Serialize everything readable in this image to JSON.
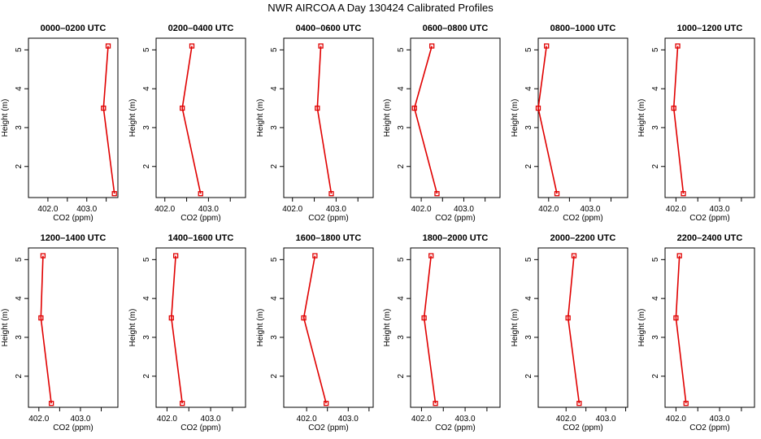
{
  "title": "NWR AIRCOA A  Day 130424  Calibrated Profiles",
  "chart_data": [
    {
      "type": "line",
      "title": "0000–0200 UTC",
      "xlabel": "CO2 (ppm)",
      "ylabel": "Height (m)",
      "xlim": [
        401.5,
        403.8
      ],
      "ylim": [
        1.2,
        5.3
      ],
      "xticks": [
        402.0,
        402.5,
        403.0,
        403.5
      ],
      "xtick_labels": [
        "402.0",
        "",
        "403.0",
        ""
      ],
      "yticks": [
        2,
        3,
        4,
        5
      ],
      "ytick_labels": [
        "2",
        "3",
        "4",
        "5"
      ],
      "series": [
        {
          "x": [
            403.55,
            403.43,
            403.71
          ],
          "y": [
            5.1,
            3.5,
            1.3
          ]
        }
      ],
      "color": "#e00000"
    },
    {
      "type": "line",
      "title": "0200–0400 UTC",
      "xlabel": "CO2 (ppm)",
      "ylabel": "Height (m)",
      "xlim": [
        401.8,
        403.85
      ],
      "ylim": [
        1.2,
        5.3
      ],
      "xticks": [
        402.0,
        402.5,
        403.0,
        403.5
      ],
      "xtick_labels": [
        "402.0",
        "",
        "403.0",
        ""
      ],
      "yticks": [
        2,
        3,
        4,
        5
      ],
      "ytick_labels": [
        "2",
        "3",
        "4",
        "5"
      ],
      "series": [
        {
          "x": [
            402.62,
            402.4,
            402.82
          ],
          "y": [
            5.1,
            3.5,
            1.3
          ]
        }
      ],
      "color": "#e00000"
    },
    {
      "type": "line",
      "title": "0400–0600 UTC",
      "xlabel": "CO2 (ppm)",
      "ylabel": "Height (m)",
      "xlim": [
        401.8,
        403.85
      ],
      "ylim": [
        1.2,
        5.3
      ],
      "xticks": [
        402.0,
        402.5,
        403.0,
        403.5
      ],
      "xtick_labels": [
        "402.0",
        "",
        "403.0",
        ""
      ],
      "yticks": [
        2,
        3,
        4,
        5
      ],
      "ytick_labels": [
        "2",
        "3",
        "4",
        "5"
      ],
      "series": [
        {
          "x": [
            402.65,
            402.57,
            402.89
          ],
          "y": [
            5.1,
            3.5,
            1.3
          ]
        }
      ],
      "color": "#e00000"
    },
    {
      "type": "line",
      "title": "0600–0800 UTC",
      "xlabel": "CO2 (ppm)",
      "ylabel": "Height (m)",
      "xlim": [
        401.75,
        403.85
      ],
      "ylim": [
        1.2,
        5.3
      ],
      "xticks": [
        402.0,
        402.5,
        403.0,
        403.5
      ],
      "xtick_labels": [
        "402.0",
        "",
        "403.0",
        ""
      ],
      "yticks": [
        2,
        3,
        4,
        5
      ],
      "ytick_labels": [
        "2",
        "3",
        "4",
        "5"
      ],
      "series": [
        {
          "x": [
            402.25,
            401.84,
            402.37
          ],
          "y": [
            5.1,
            3.5,
            1.3
          ]
        }
      ],
      "color": "#e00000"
    },
    {
      "type": "line",
      "title": "0800–1000 UTC",
      "xlabel": "CO2 (ppm)",
      "ylabel": "Height (m)",
      "xlim": [
        401.75,
        403.9
      ],
      "ylim": [
        1.2,
        5.3
      ],
      "xticks": [
        402.0,
        402.5,
        403.0,
        403.5
      ],
      "xtick_labels": [
        "402.0",
        "",
        "403.0",
        ""
      ],
      "yticks": [
        2,
        3,
        4,
        5
      ],
      "ytick_labels": [
        "2",
        "3",
        "4",
        "5"
      ],
      "series": [
        {
          "x": [
            401.95,
            401.75,
            402.2
          ],
          "y": [
            5.1,
            3.5,
            1.3
          ]
        }
      ],
      "color": "#e00000"
    },
    {
      "type": "line",
      "title": "1000–1200 UTC",
      "xlabel": "CO2 (ppm)",
      "ylabel": "Height (m)",
      "xlim": [
        401.75,
        403.8
      ],
      "ylim": [
        1.2,
        5.3
      ],
      "xticks": [
        402.0,
        402.5,
        403.0,
        403.5
      ],
      "xtick_labels": [
        "402.0",
        "",
        "403.0",
        ""
      ],
      "yticks": [
        2,
        3,
        4,
        5
      ],
      "ytick_labels": [
        "2",
        "3",
        "4",
        "5"
      ],
      "series": [
        {
          "x": [
            402.04,
            401.95,
            402.17
          ],
          "y": [
            5.1,
            3.5,
            1.3
          ]
        }
      ],
      "color": "#e00000"
    },
    {
      "type": "line",
      "title": "1200–1400 UTC",
      "xlabel": "CO2 (ppm)",
      "ylabel": "Height (m)",
      "xlim": [
        401.75,
        403.9
      ],
      "ylim": [
        1.2,
        5.3
      ],
      "xticks": [
        402.0,
        402.5,
        403.0,
        403.5
      ],
      "xtick_labels": [
        "402.0",
        "",
        "403.0",
        ""
      ],
      "yticks": [
        2,
        3,
        4,
        5
      ],
      "ytick_labels": [
        "2",
        "3",
        "4",
        "5"
      ],
      "series": [
        {
          "x": [
            402.1,
            402.05,
            402.3
          ],
          "y": [
            5.1,
            3.5,
            1.3
          ]
        }
      ],
      "color": "#e00000"
    },
    {
      "type": "line",
      "title": "1400–1600 UTC",
      "xlabel": "CO2 (ppm)",
      "ylabel": "Height (m)",
      "xlim": [
        401.75,
        403.8
      ],
      "ylim": [
        1.2,
        5.3
      ],
      "xticks": [
        402.0,
        402.5,
        403.0,
        403.5
      ],
      "xtick_labels": [
        "402.0",
        "",
        "403.0",
        ""
      ],
      "yticks": [
        2,
        3,
        4,
        5
      ],
      "ytick_labels": [
        "2",
        "3",
        "4",
        "5"
      ],
      "series": [
        {
          "x": [
            402.2,
            402.1,
            402.35
          ],
          "y": [
            5.1,
            3.5,
            1.3
          ]
        }
      ],
      "color": "#e00000"
    },
    {
      "type": "line",
      "title": "1600–1800 UTC",
      "xlabel": "CO2 (ppm)",
      "ylabel": "Height (m)",
      "xlim": [
        401.45,
        403.6
      ],
      "ylim": [
        1.2,
        5.3
      ],
      "xticks": [
        402.0,
        402.5,
        403.0,
        403.5
      ],
      "xtick_labels": [
        "402.0",
        "",
        "403.0",
        ""
      ],
      "yticks": [
        2,
        3,
        4,
        5
      ],
      "ytick_labels": [
        "2",
        "3",
        "4",
        "5"
      ],
      "series": [
        {
          "x": [
            402.2,
            401.93,
            402.47
          ],
          "y": [
            5.1,
            3.5,
            1.3
          ]
        }
      ],
      "color": "#e00000"
    },
    {
      "type": "line",
      "title": "1800–2000 UTC",
      "xlabel": "CO2 (ppm)",
      "ylabel": "Height (m)",
      "xlim": [
        401.75,
        403.8
      ],
      "ylim": [
        1.2,
        5.3
      ],
      "xticks": [
        402.0,
        402.5,
        403.0,
        403.5
      ],
      "xtick_labels": [
        "402.0",
        "",
        "403.0",
        ""
      ],
      "yticks": [
        2,
        3,
        4,
        5
      ],
      "ytick_labels": [
        "2",
        "3",
        "4",
        "5"
      ],
      "series": [
        {
          "x": [
            402.22,
            402.06,
            402.32
          ],
          "y": [
            5.1,
            3.5,
            1.3
          ]
        }
      ],
      "color": "#e00000"
    },
    {
      "type": "line",
      "title": "2000–2200 UTC",
      "xlabel": "CO2 (ppm)",
      "ylabel": "Height (m)",
      "xlim": [
        401.3,
        403.55
      ],
      "ylim": [
        1.2,
        5.3
      ],
      "xticks": [
        402.0,
        402.5,
        403.0,
        403.5
      ],
      "xtick_labels": [
        "402.0",
        "",
        "403.0",
        ""
      ],
      "yticks": [
        2,
        3,
        4,
        5
      ],
      "ytick_labels": [
        "2",
        "3",
        "4",
        "5"
      ],
      "series": [
        {
          "x": [
            402.2,
            402.05,
            402.33
          ],
          "y": [
            5.1,
            3.5,
            1.3
          ]
        }
      ],
      "color": "#e00000"
    },
    {
      "type": "line",
      "title": "2200–2400 UTC",
      "xlabel": "CO2 (ppm)",
      "ylabel": "Height (m)",
      "xlim": [
        401.75,
        403.8
      ],
      "ylim": [
        1.2,
        5.3
      ],
      "xticks": [
        402.0,
        402.5,
        403.0,
        403.5
      ],
      "xtick_labels": [
        "402.0",
        "",
        "403.0",
        ""
      ],
      "yticks": [
        2,
        3,
        4,
        5
      ],
      "ytick_labels": [
        "2",
        "3",
        "4",
        "5"
      ],
      "series": [
        {
          "x": [
            402.08,
            402.0,
            402.23
          ],
          "y": [
            5.1,
            3.5,
            1.3
          ]
        }
      ],
      "color": "#e00000"
    }
  ]
}
